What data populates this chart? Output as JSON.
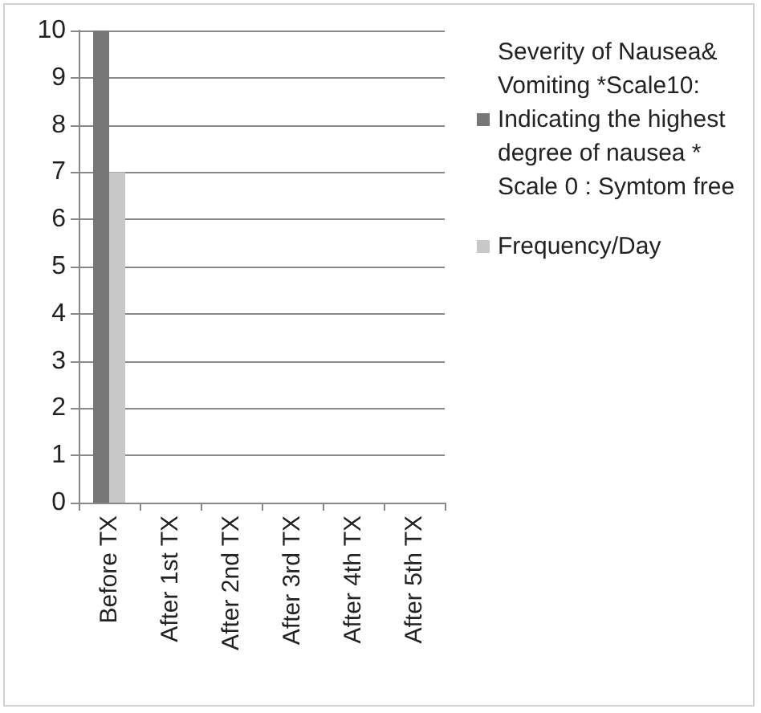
{
  "chart_data": {
    "type": "bar",
    "categories": [
      "Before TX",
      "After 1st TX",
      "After 2nd TX",
      "After 3rd TX",
      "After 4th TX",
      "After 5th TX"
    ],
    "series": [
      {
        "name": "Severity of Nausea&Vomiting *Scale10: Indicating the highest degree of nausea * Scale 0 : Symtom free",
        "color": "#777777",
        "values": [
          10,
          0,
          0,
          0,
          0,
          0
        ]
      },
      {
        "name": "Frequency/Day",
        "color": "#c8c8c8",
        "values": [
          7,
          0,
          0,
          0,
          0,
          0
        ]
      }
    ],
    "ylim": [
      0,
      10
    ],
    "yticks": [
      0,
      1,
      2,
      3,
      4,
      5,
      6,
      7,
      8,
      9,
      10
    ],
    "grid": "y",
    "legend": "right"
  }
}
